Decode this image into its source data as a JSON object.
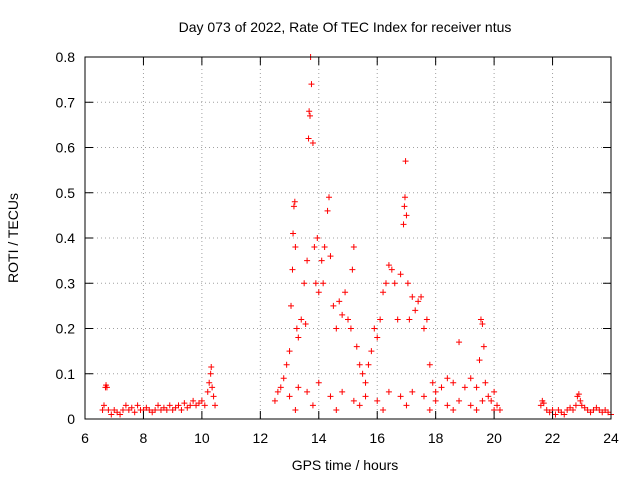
{
  "chart_data": {
    "type": "scatter",
    "title": "Day 073 of 2022, Rate Of TEC Index for receiver ntus",
    "xlabel": "GPS time / hours",
    "ylabel": "ROTI / TECUs",
    "xlim": [
      6,
      24
    ],
    "ylim": [
      0,
      0.8
    ],
    "x_ticks": [
      6,
      8,
      10,
      12,
      14,
      16,
      18,
      20,
      22,
      24
    ],
    "x_tick_labels": [
      "6",
      "8",
      "10",
      "12",
      "14",
      "16",
      "18",
      "20",
      "22",
      "24"
    ],
    "y_ticks": [
      0,
      0.1,
      0.2,
      0.3,
      0.4,
      0.5,
      0.6,
      0.7,
      0.8
    ],
    "y_tick_labels": [
      "0",
      "0.1",
      "0.2",
      "0.3",
      "0.4",
      "0.5",
      "0.6",
      "0.7",
      "0.8"
    ],
    "grid": true,
    "marker": "plus",
    "marker_color": "#ff0000",
    "series": [
      {
        "points": [
          [
            6.6,
            0.02
          ],
          [
            6.65,
            0.03
          ],
          [
            6.7,
            0.07
          ],
          [
            6.72,
            0.075
          ],
          [
            6.75,
            0.07
          ],
          [
            6.8,
            0.02
          ],
          [
            6.9,
            0.01
          ],
          [
            7.0,
            0.02
          ],
          [
            7.1,
            0.015
          ],
          [
            7.2,
            0.01
          ],
          [
            7.3,
            0.02
          ],
          [
            7.4,
            0.03
          ],
          [
            7.5,
            0.02
          ],
          [
            7.6,
            0.025
          ],
          [
            7.7,
            0.015
          ],
          [
            7.8,
            0.03
          ],
          [
            7.9,
            0.02
          ],
          [
            8.0,
            0.02
          ],
          [
            8.1,
            0.025
          ],
          [
            8.2,
            0.02
          ],
          [
            8.3,
            0.015
          ],
          [
            8.4,
            0.02
          ],
          [
            8.5,
            0.03
          ],
          [
            8.6,
            0.02
          ],
          [
            8.7,
            0.025
          ],
          [
            8.8,
            0.02
          ],
          [
            8.9,
            0.03
          ],
          [
            9.0,
            0.02
          ],
          [
            9.1,
            0.025
          ],
          [
            9.2,
            0.03
          ],
          [
            9.3,
            0.02
          ],
          [
            9.4,
            0.035
          ],
          [
            9.5,
            0.025
          ],
          [
            9.6,
            0.03
          ],
          [
            9.7,
            0.04
          ],
          [
            9.8,
            0.03
          ],
          [
            9.9,
            0.035
          ],
          [
            10.0,
            0.04
          ],
          [
            10.1,
            0.03
          ],
          [
            10.2,
            0.06
          ],
          [
            10.25,
            0.08
          ],
          [
            10.3,
            0.1
          ],
          [
            10.32,
            0.115
          ],
          [
            10.35,
            0.07
          ],
          [
            10.4,
            0.05
          ],
          [
            10.45,
            0.03
          ],
          [
            12.5,
            0.04
          ],
          [
            12.6,
            0.06
          ],
          [
            12.7,
            0.07
          ],
          [
            12.8,
            0.09
          ],
          [
            12.9,
            0.12
          ],
          [
            13.0,
            0.15
          ],
          [
            13.05,
            0.25
          ],
          [
            13.1,
            0.33
          ],
          [
            13.12,
            0.41
          ],
          [
            13.15,
            0.47
          ],
          [
            13.18,
            0.48
          ],
          [
            13.2,
            0.38
          ],
          [
            13.25,
            0.2
          ],
          [
            13.3,
            0.18
          ],
          [
            13.4,
            0.22
          ],
          [
            13.5,
            0.3
          ],
          [
            13.55,
            0.21
          ],
          [
            13.6,
            0.35
          ],
          [
            13.65,
            0.62
          ],
          [
            13.67,
            0.68
          ],
          [
            13.7,
            0.67
          ],
          [
            13.72,
            0.8
          ],
          [
            13.75,
            0.74
          ],
          [
            13.8,
            0.61
          ],
          [
            13.85,
            0.38
          ],
          [
            13.9,
            0.3
          ],
          [
            13.95,
            0.4
          ],
          [
            14.0,
            0.28
          ],
          [
            14.1,
            0.35
          ],
          [
            14.15,
            0.3
          ],
          [
            14.2,
            0.38
          ],
          [
            14.3,
            0.46
          ],
          [
            14.35,
            0.49
          ],
          [
            14.4,
            0.36
          ],
          [
            14.5,
            0.25
          ],
          [
            14.6,
            0.2
          ],
          [
            14.7,
            0.26
          ],
          [
            14.8,
            0.23
          ],
          [
            14.9,
            0.28
          ],
          [
            15.0,
            0.22
          ],
          [
            15.1,
            0.2
          ],
          [
            15.15,
            0.33
          ],
          [
            15.2,
            0.38
          ],
          [
            15.3,
            0.16
          ],
          [
            15.4,
            0.12
          ],
          [
            15.5,
            0.1
          ],
          [
            15.6,
            0.08
          ],
          [
            15.7,
            0.12
          ],
          [
            15.8,
            0.15
          ],
          [
            15.9,
            0.2
          ],
          [
            16.0,
            0.18
          ],
          [
            16.1,
            0.22
          ],
          [
            16.2,
            0.28
          ],
          [
            16.3,
            0.3
          ],
          [
            16.4,
            0.34
          ],
          [
            16.5,
            0.33
          ],
          [
            16.6,
            0.3
          ],
          [
            16.7,
            0.22
          ],
          [
            16.8,
            0.32
          ],
          [
            16.9,
            0.43
          ],
          [
            16.93,
            0.47
          ],
          [
            16.95,
            0.49
          ],
          [
            16.97,
            0.57
          ],
          [
            17.0,
            0.45
          ],
          [
            17.05,
            0.3
          ],
          [
            17.1,
            0.22
          ],
          [
            17.2,
            0.27
          ],
          [
            17.3,
            0.24
          ],
          [
            17.4,
            0.26
          ],
          [
            17.5,
            0.27
          ],
          [
            17.6,
            0.2
          ],
          [
            17.7,
            0.22
          ],
          [
            17.8,
            0.12
          ],
          [
            17.9,
            0.08
          ],
          [
            18.0,
            0.06
          ],
          [
            18.2,
            0.07
          ],
          [
            18.4,
            0.09
          ],
          [
            18.6,
            0.08
          ],
          [
            18.8,
            0.17
          ],
          [
            19.0,
            0.07
          ],
          [
            19.2,
            0.09
          ],
          [
            19.4,
            0.07
          ],
          [
            19.5,
            0.13
          ],
          [
            19.55,
            0.22
          ],
          [
            19.6,
            0.21
          ],
          [
            19.65,
            0.16
          ],
          [
            19.7,
            0.08
          ],
          [
            19.8,
            0.05
          ],
          [
            19.9,
            0.04
          ],
          [
            20.0,
            0.06
          ],
          [
            20.1,
            0.03
          ],
          [
            20.2,
            0.02
          ],
          [
            13.0,
            0.05
          ],
          [
            13.3,
            0.07
          ],
          [
            13.6,
            0.06
          ],
          [
            14.0,
            0.08
          ],
          [
            14.4,
            0.05
          ],
          [
            14.8,
            0.06
          ],
          [
            15.2,
            0.04
          ],
          [
            15.6,
            0.05
          ],
          [
            16.0,
            0.04
          ],
          [
            16.4,
            0.06
          ],
          [
            16.8,
            0.05
          ],
          [
            17.2,
            0.06
          ],
          [
            17.6,
            0.05
          ],
          [
            18.0,
            0.04
          ],
          [
            18.4,
            0.03
          ],
          [
            18.8,
            0.04
          ],
          [
            19.2,
            0.03
          ],
          [
            19.6,
            0.04
          ],
          [
            20.0,
            0.02
          ],
          [
            13.2,
            0.02
          ],
          [
            13.8,
            0.03
          ],
          [
            14.6,
            0.02
          ],
          [
            15.4,
            0.03
          ],
          [
            16.2,
            0.02
          ],
          [
            17.0,
            0.03
          ],
          [
            17.8,
            0.02
          ],
          [
            18.6,
            0.02
          ],
          [
            19.4,
            0.02
          ],
          [
            21.6,
            0.03
          ],
          [
            21.65,
            0.04
          ],
          [
            21.7,
            0.035
          ],
          [
            21.8,
            0.02
          ],
          [
            21.9,
            0.015
          ],
          [
            22.0,
            0.02
          ],
          [
            22.1,
            0.01
          ],
          [
            22.2,
            0.02
          ],
          [
            22.3,
            0.015
          ],
          [
            22.4,
            0.01
          ],
          [
            22.5,
            0.02
          ],
          [
            22.6,
            0.025
          ],
          [
            22.7,
            0.02
          ],
          [
            22.8,
            0.03
          ],
          [
            22.85,
            0.05
          ],
          [
            22.9,
            0.055
          ],
          [
            22.95,
            0.04
          ],
          [
            23.0,
            0.03
          ],
          [
            23.1,
            0.025
          ],
          [
            23.2,
            0.02
          ],
          [
            23.3,
            0.015
          ],
          [
            23.4,
            0.02
          ],
          [
            23.5,
            0.025
          ],
          [
            23.6,
            0.02
          ],
          [
            23.7,
            0.015
          ],
          [
            23.8,
            0.02
          ],
          [
            23.9,
            0.015
          ],
          [
            24.0,
            0.01
          ]
        ]
      }
    ]
  }
}
